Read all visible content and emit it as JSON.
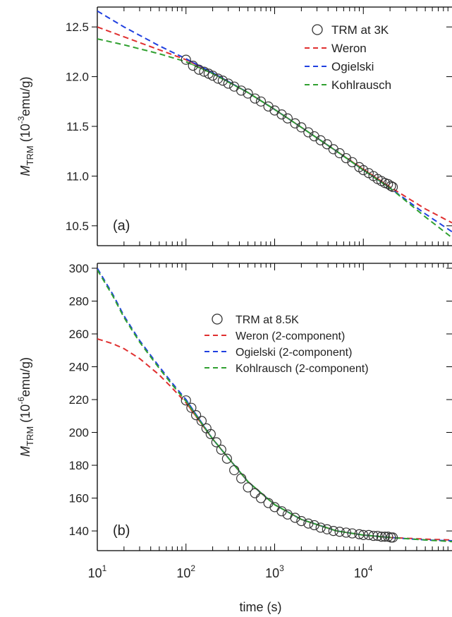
{
  "chart_data": [
    {
      "type": "line",
      "panel_label": "(a)",
      "ylabel": {
        "main": "M",
        "sub": "TRM",
        "rest": " (10",
        "sup": "-3",
        "unit": "emu/g)"
      },
      "xscale": "log",
      "xlim": [
        10,
        100000
      ],
      "ylim": [
        10.3,
        12.7
      ],
      "yticks": [
        10.5,
        11.0,
        11.5,
        12.0,
        12.5
      ],
      "ytick_labels": [
        "10.5",
        "11.0",
        "11.5",
        "12.0",
        "12.5"
      ],
      "legend": {
        "placement": "top-right",
        "entries": [
          {
            "label": "TRM at 3K",
            "marker": "circle"
          },
          {
            "label": "Weron",
            "color": "#e03030"
          },
          {
            "label": "Ogielski",
            "color": "#2040e0"
          },
          {
            "label": "Kohlrausch",
            "color": "#30a030"
          }
        ]
      },
      "data_points": {
        "name": "TRM at 3K",
        "x": [
          100,
          120,
          140,
          160,
          180,
          200,
          230,
          260,
          300,
          350,
          420,
          500,
          600,
          700,
          850,
          1000,
          1200,
          1400,
          1700,
          2000,
          2400,
          2800,
          3300,
          3900,
          4600,
          5400,
          6400,
          7500,
          9000,
          10000,
          11500,
          13000,
          14500,
          16000,
          17500,
          19000,
          20500,
          21500
        ],
        "y": [
          12.17,
          12.11,
          12.07,
          12.05,
          12.03,
          12.01,
          11.98,
          11.96,
          11.93,
          11.9,
          11.86,
          11.83,
          11.78,
          11.75,
          11.7,
          11.66,
          11.62,
          11.58,
          11.53,
          11.49,
          11.44,
          11.4,
          11.36,
          11.32,
          11.27,
          11.23,
          11.18,
          11.14,
          11.09,
          11.06,
          11.03,
          11.0,
          10.97,
          10.95,
          10.93,
          10.92,
          10.9,
          10.89
        ]
      },
      "series": [
        {
          "name": "Weron",
          "color": "#e03030",
          "x": [
            10,
            20,
            50,
            100,
            200,
            500,
            1000,
            2000,
            5000,
            10000,
            20000,
            50000,
            100000
          ],
          "y": [
            12.5,
            12.4,
            12.27,
            12.17,
            12.04,
            11.84,
            11.67,
            11.49,
            11.25,
            11.07,
            10.89,
            10.67,
            10.53
          ]
        },
        {
          "name": "Ogielski",
          "color": "#2040e0",
          "x": [
            10,
            20,
            50,
            100,
            200,
            500,
            1000,
            2000,
            5000,
            10000,
            20000,
            50000,
            100000
          ],
          "y": [
            12.66,
            12.5,
            12.31,
            12.18,
            12.04,
            11.84,
            11.67,
            11.49,
            11.25,
            11.06,
            10.88,
            10.62,
            10.44
          ]
        },
        {
          "name": "Kohlrausch",
          "color": "#30a030",
          "x": [
            10,
            20,
            50,
            100,
            200,
            500,
            1000,
            2000,
            5000,
            10000,
            20000,
            50000,
            100000
          ],
          "y": [
            12.38,
            12.32,
            12.23,
            12.15,
            12.03,
            11.84,
            11.67,
            11.49,
            11.25,
            11.06,
            10.88,
            10.59,
            10.38
          ]
        }
      ]
    },
    {
      "type": "line",
      "panel_label": "(b)",
      "ylabel": {
        "main": "M",
        "sub": "TRM",
        "rest": " (10",
        "sup": "-6",
        "unit": "emu/g)"
      },
      "xlabel": "time (s)",
      "xscale": "log",
      "xlim": [
        10,
        100000
      ],
      "ylim": [
        128,
        303
      ],
      "yticks": [
        140,
        160,
        180,
        200,
        220,
        240,
        260,
        280,
        300
      ],
      "ytick_labels": [
        "140",
        "160",
        "180",
        "200",
        "220",
        "240",
        "260",
        "280",
        "300"
      ],
      "xticks": [
        10,
        100,
        1000,
        10000
      ],
      "xtick_labels": [
        {
          "base": "10",
          "exp": "1"
        },
        {
          "base": "10",
          "exp": "2"
        },
        {
          "base": "10",
          "exp": "3"
        },
        {
          "base": "10",
          "exp": "4"
        }
      ],
      "legend": {
        "placement": "top-right",
        "entries": [
          {
            "label": "TRM at 8.5K",
            "marker": "circle"
          },
          {
            "label": "Weron (2-component)",
            "color": "#e03030"
          },
          {
            "label": "Ogielski (2-component)",
            "color": "#2040e0"
          },
          {
            "label": "Kohlrausch (2-component)",
            "color": "#30a030"
          }
        ]
      },
      "data_points": {
        "name": "TRM at 8.5K",
        "x": [
          100,
          115,
          130,
          150,
          170,
          190,
          220,
          250,
          290,
          350,
          420,
          500,
          600,
          700,
          850,
          1000,
          1200,
          1400,
          1700,
          2000,
          2400,
          2800,
          3300,
          3900,
          4600,
          5400,
          6400,
          7500,
          9000,
          10000,
          11500,
          13000,
          14500,
          16000,
          17500,
          19000,
          20500,
          21500
        ],
        "y": [
          219.5,
          215,
          210.5,
          207,
          202.5,
          199,
          194,
          189.5,
          184,
          177,
          172,
          166.5,
          163,
          160,
          157,
          154.5,
          152,
          150,
          148,
          146,
          144.5,
          143.5,
          142,
          141,
          140,
          139.5,
          139,
          138.5,
          138,
          137.5,
          137.5,
          137,
          137,
          136.5,
          136.5,
          136.5,
          136,
          136
        ]
      },
      "series": [
        {
          "name": "Weron (2-component)",
          "color": "#e03030",
          "x": [
            10,
            15,
            20,
            30,
            50,
            70,
            100,
            200,
            500,
            1000,
            2000,
            5000,
            10000,
            20000,
            50000,
            100000
          ],
          "y": [
            257,
            254,
            251,
            245,
            235,
            227,
            218,
            196,
            170,
            156,
            147,
            140,
            137.5,
            136,
            135,
            134.5
          ]
        },
        {
          "name": "Ogielski (2-component)",
          "color": "#2040e0",
          "x": [
            10,
            15,
            20,
            30,
            50,
            70,
            100,
            200,
            500,
            1000,
            2000,
            5000,
            10000,
            20000,
            50000,
            100000
          ],
          "y": [
            300,
            284,
            271,
            256,
            240,
            230,
            220,
            196,
            170,
            156,
            147,
            140,
            137.5,
            136,
            134.5,
            134
          ]
        },
        {
          "name": "Kohlrausch (2-component)",
          "color": "#30a030",
          "x": [
            10,
            15,
            20,
            30,
            50,
            70,
            100,
            200,
            500,
            1000,
            2000,
            5000,
            10000,
            20000,
            50000,
            100000
          ],
          "y": [
            299,
            283,
            270,
            255,
            239,
            229,
            219,
            196,
            170,
            156,
            147,
            140,
            137.5,
            136,
            134.5,
            133.5
          ]
        }
      ]
    }
  ]
}
